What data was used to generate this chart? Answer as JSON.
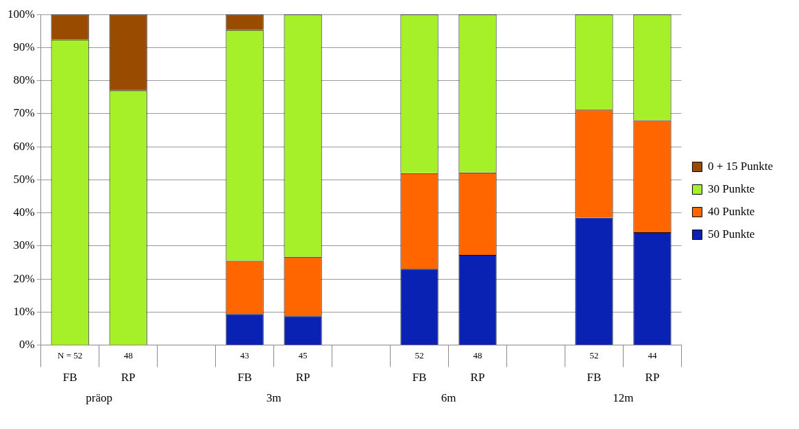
{
  "chart_data": {
    "type": "bar",
    "stacked": true,
    "categories": [
      "FB",
      "RP",
      null,
      "FB",
      "RP",
      null,
      "FB",
      "RP",
      null,
      "FB",
      "RP"
    ],
    "series": [
      {
        "name": "50 Punkte",
        "color": "#0a22b4",
        "values": [
          0,
          0,
          null,
          9.4,
          8.8,
          null,
          23.1,
          27.3,
          null,
          38.6,
          34.1
        ]
      },
      {
        "name": "40 Punkte",
        "color": "#ff6600",
        "values": [
          0,
          0,
          null,
          16.1,
          17.9,
          null,
          28.9,
          24.9,
          null,
          32.6,
          33.9
        ]
      },
      {
        "name": "30 Punkte",
        "color": "#a6f02a",
        "values": [
          92.4,
          77.1,
          null,
          69.8,
          73.3,
          null,
          48,
          47.8,
          null,
          28.8,
          32
        ]
      },
      {
        "name": "0 + 15 Punkte",
        "color": "#994c00",
        "values": [
          7.6,
          22.9,
          null,
          4.7,
          0,
          null,
          0,
          0,
          null,
          0,
          0
        ]
      }
    ],
    "ylim": [
      0,
      100
    ],
    "yticks": [
      {
        "value": 0,
        "label": "0%"
      },
      {
        "value": 10,
        "label": "10%"
      },
      {
        "value": 20,
        "label": "20%"
      },
      {
        "value": 30,
        "label": "30%"
      },
      {
        "value": 40,
        "label": "40%"
      },
      {
        "value": 50,
        "label": "50%"
      },
      {
        "value": 60,
        "label": "60%"
      },
      {
        "value": 70,
        "label": "70%"
      },
      {
        "value": 80,
        "label": "80%"
      },
      {
        "value": 90,
        "label": "90%"
      },
      {
        "value": 100,
        "label": "100%"
      }
    ],
    "grid": "y",
    "legend": "right",
    "annotations": [
      "N = 52",
      "48",
      "43",
      "45",
      "52",
      "48",
      "52",
      "44",
      "präop",
      "3m",
      "6m",
      "12m"
    ]
  }
}
